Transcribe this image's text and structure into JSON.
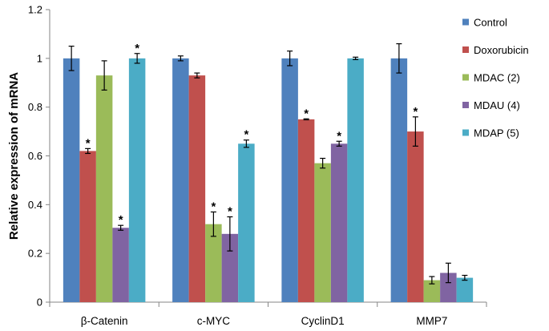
{
  "chart_data": {
    "type": "bar",
    "title": "",
    "xlabel": "",
    "ylabel": "Relative expression of mRNA",
    "ylim": [
      0,
      1.2
    ],
    "yticks": [
      "0",
      "0.2",
      "0.4",
      "0.6",
      "0.8",
      "1",
      "1.2"
    ],
    "categories": [
      "β-Catenin",
      "c-MYC",
      "CyclinD1",
      "MMP7"
    ],
    "grid": false,
    "legend_position": "right",
    "series": [
      {
        "name": "Control",
        "color": "#4F81BD",
        "values": [
          1.0,
          1.0,
          1.0,
          1.0
        ],
        "errors": [
          0.05,
          0.01,
          0.03,
          0.06
        ],
        "significant": [
          false,
          false,
          false,
          false
        ]
      },
      {
        "name": "Doxorubicin",
        "color": "#C0504D",
        "values": [
          0.62,
          0.93,
          0.75,
          0.7
        ],
        "errors": [
          0.01,
          0.01,
          0.002,
          0.06
        ],
        "significant": [
          true,
          false,
          true,
          true
        ]
      },
      {
        "name": "MDAC (2)",
        "color": "#9BBB59",
        "values": [
          0.93,
          0.32,
          0.57,
          0.09
        ],
        "errors": [
          0.06,
          0.05,
          0.02,
          0.015
        ],
        "significant": [
          false,
          true,
          false,
          false
        ]
      },
      {
        "name": "MDAU (4)",
        "color": "#8064A2",
        "values": [
          0.305,
          0.28,
          0.65,
          0.12
        ],
        "errors": [
          0.01,
          0.07,
          0.01,
          0.04
        ],
        "significant": [
          true,
          true,
          true,
          false
        ]
      },
      {
        "name": "MDAP (5)",
        "color": "#4BACC6",
        "values": [
          1.0,
          0.65,
          1.0,
          0.1
        ],
        "errors": [
          0.02,
          0.015,
          0.005,
          0.01
        ],
        "significant": [
          true,
          true,
          false,
          false
        ]
      }
    ],
    "significance_marker": "*"
  }
}
